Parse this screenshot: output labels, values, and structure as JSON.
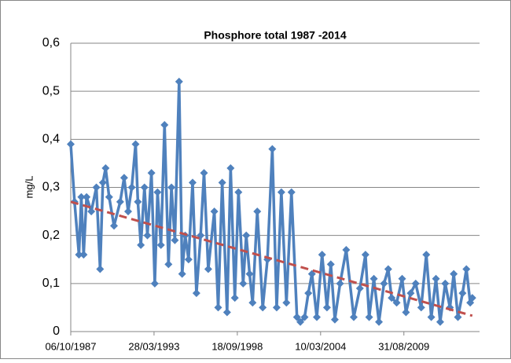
{
  "chart_data": {
    "type": "line",
    "title": "Phosphore total 1987 -2014",
    "y_label": "mg/L",
    "x": [
      "06/10/1987",
      "05/01/1988",
      "20/04/1988",
      "15/06/1988",
      "10/08/1988",
      "20/10/1988",
      "10/02/1989",
      "12/06/1989",
      "10/09/1989",
      "15/11/1989",
      "20/01/1990",
      "15/04/1990",
      "10/08/1990",
      "05/01/1991",
      "10/04/1991",
      "15/07/1991",
      "10/10/1991",
      "10/01/1992",
      "05/03/1992",
      "15/05/1992",
      "10/08/1992",
      "20/10/1992",
      "25/01/1993",
      "15/04/1993",
      "20/06/1993",
      "10/09/1993",
      "05/12/1993",
      "10/03/1994",
      "20/05/1994",
      "10/08/1994",
      "20/11/1994",
      "01/02/1995",
      "15/04/1995",
      "05/07/1995",
      "10/10/1995",
      "10/01/1996",
      "20/04/1996",
      "10/07/1996",
      "20/10/1996",
      "15/03/1997",
      "15/06/1997",
      "20/09/1997",
      "15/01/1998",
      "10/04/1998",
      "20/07/1998",
      "15/10/1998",
      "05/02/1999",
      "20/04/1999",
      "10/07/1999",
      "20/09/1999",
      "10/01/2000",
      "20/05/2000",
      "10/09/2000",
      "05/01/2001",
      "20/04/2001",
      "10/08/2001",
      "10/12/2001",
      "10/04/2002",
      "20/08/2002",
      "10/11/2002",
      "20/02/2003",
      "20/05/2003",
      "15/08/2003",
      "10/12/2003",
      "15/04/2004",
      "10/08/2004",
      "10/11/2004",
      "15/02/2005",
      "20/06/2005",
      "15/11/2005",
      "15/05/2006",
      "10/10/2006",
      "20/02/2007",
      "20/05/2007",
      "10/09/2007",
      "10/01/2008",
      "10/05/2008",
      "20/08/2008",
      "10/11/2008",
      "10/03/2009",
      "20/07/2009",
      "20/10/2009",
      "10/02/2010",
      "10/06/2010",
      "20/10/2010",
      "20/02/2011",
      "20/06/2011",
      "10/10/2011",
      "20/01/2012",
      "20/05/2012",
      "10/09/2012",
      "10/12/2012",
      "20/03/2013",
      "10/07/2013",
      "10/10/2013",
      "10/01/2014",
      "01/03/2014"
    ],
    "series": [
      {
        "color": "#4f81bd",
        "values": [
          0.39,
          0.27,
          0.16,
          0.28,
          0.16,
          0.28,
          0.25,
          0.3,
          0.13,
          0.31,
          0.34,
          0.28,
          0.22,
          0.27,
          0.32,
          0.25,
          0.3,
          0.39,
          0.27,
          0.18,
          0.3,
          0.2,
          0.33,
          0.1,
          0.29,
          0.18,
          0.43,
          0.14,
          0.3,
          0.19,
          0.52,
          0.12,
          0.2,
          0.15,
          0.31,
          0.08,
          0.2,
          0.33,
          0.13,
          0.25,
          0.05,
          0.31,
          0.04,
          0.34,
          0.07,
          0.29,
          0.1,
          0.2,
          0.12,
          0.06,
          0.25,
          0.05,
          0.15,
          0.38,
          0.05,
          0.29,
          0.06,
          0.29,
          0.03,
          0.02,
          0.03,
          0.08,
          0.12,
          0.03,
          0.16,
          0.05,
          0.14,
          0.025,
          0.1,
          0.17,
          0.03,
          0.09,
          0.16,
          0.03,
          0.11,
          0.02,
          0.1,
          0.13,
          0.07,
          0.06,
          0.11,
          0.04,
          0.08,
          0.1,
          0.05,
          0.16,
          0.03,
          0.11,
          0.02,
          0.1,
          0.05,
          0.12,
          0.03,
          0.08,
          0.13,
          0.06,
          0.07
        ]
      }
    ],
    "trendline": {
      "color": "#c0504d",
      "x": [
        "06/10/1987",
        "01/03/2014"
      ],
      "values": [
        0.27,
        0.033
      ]
    },
    "xlim": [
      "06/10/1987",
      "22/08/2014"
    ],
    "xticks": [
      "06/10/1987",
      "28/03/1993",
      "18/09/1998",
      "10/03/2004",
      "31/08/2009"
    ],
    "ylim": [
      0,
      0.6
    ],
    "yticks": [
      0,
      {
        "value": 0.1,
        "label": "0,1"
      },
      {
        "value": 0.2,
        "label": "0,2"
      },
      {
        "value": 0.3,
        "label": "0,3"
      },
      {
        "value": 0.4,
        "label": "0,4"
      },
      {
        "value": 0.5,
        "label": "0,5"
      },
      {
        "value": 0.6,
        "label": "0,6"
      }
    ],
    "grid": true
  }
}
